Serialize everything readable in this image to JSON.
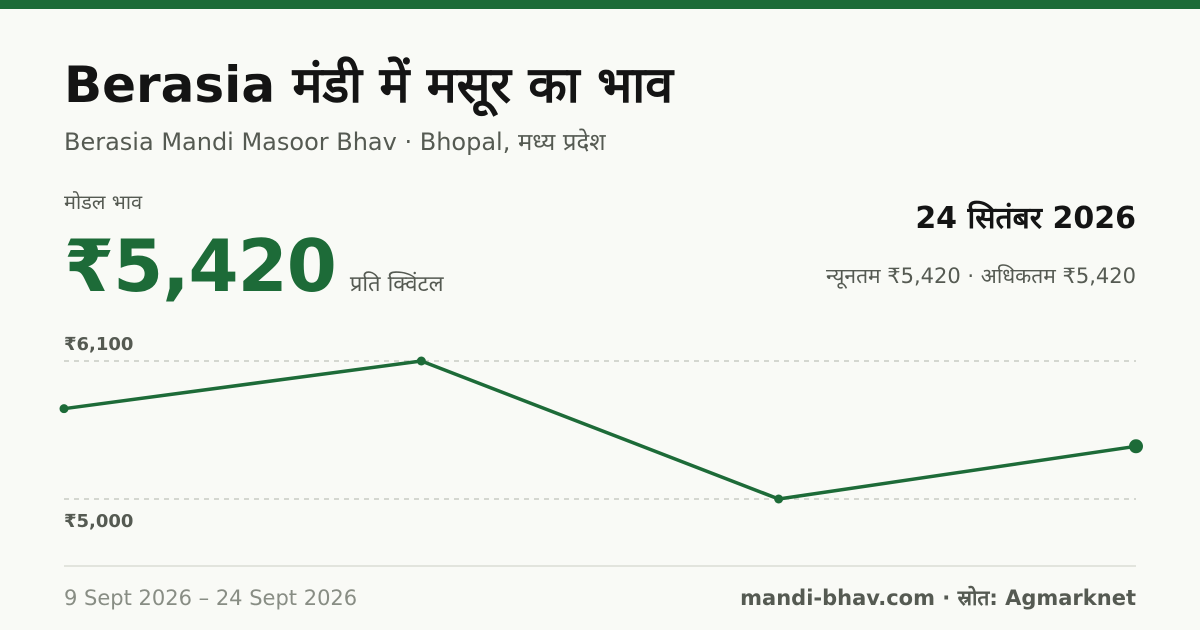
{
  "header": {
    "title": "Berasia मंडी में मसूर का भाव",
    "subtitle": "Berasia Mandi Masoor Bhav · Bhopal, मध्य प्रदेश"
  },
  "price": {
    "label": "मोडल भाव",
    "value": "₹5,420",
    "unit": "प्रति क्विंटल"
  },
  "summary": {
    "date": "24 सितंबर 2026",
    "range": "न्यूनतम ₹5,420 · अधिकतम ₹5,420"
  },
  "footer": {
    "date_range": "9 Sept 2026 – 24 Sept 2026",
    "source": "mandi-bhav.com · स्रोत: Agmarknet"
  },
  "colors": {
    "accent": "#1d6b38",
    "grid": "#c8cbc4",
    "background": "#f9faf6"
  },
  "chart_data": {
    "type": "line",
    "title": "",
    "xlabel": "",
    "ylabel": "",
    "x": [
      "2026-09-09",
      "2026-09-14",
      "2026-09-19",
      "2026-09-24"
    ],
    "series": [
      {
        "values": [
          5720,
          6100,
          5000,
          5420
        ]
      }
    ],
    "ylim": [
      5000,
      6100
    ],
    "yticks": [
      {
        "value": 6100,
        "label": "₹6,100"
      },
      {
        "value": 5000,
        "label": "₹5,000"
      }
    ],
    "grid": true,
    "legend": "none"
  }
}
